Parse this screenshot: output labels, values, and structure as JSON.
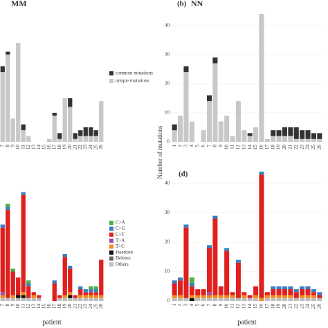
{
  "chart_data": [
    {
      "type": "bar",
      "stacked": true,
      "title": "MM",
      "categories": [
        "7",
        "8",
        "9",
        "10",
        "11",
        "12",
        "13",
        "14",
        "15",
        "16",
        "17",
        "18",
        "19",
        "20",
        "21",
        "22",
        "23",
        "24",
        "25",
        "26"
      ],
      "series": [
        {
          "name": "unique mutations",
          "color": "#c8c8c8",
          "values": [
            24,
            30,
            8,
            34,
            4,
            2,
            0,
            0,
            0,
            1,
            9,
            1,
            15,
            12,
            1,
            2,
            2,
            2,
            2,
            14
          ]
        },
        {
          "name": "common mutations",
          "color": "#333333",
          "values": [
            2,
            1,
            0,
            0,
            2,
            0,
            0,
            0,
            0,
            0,
            1,
            2,
            0,
            3,
            2,
            2,
            3,
            3,
            2,
            0
          ]
        }
      ],
      "ylim": [
        0,
        44
      ],
      "legend": "right"
    },
    {
      "type": "bar",
      "stacked": true,
      "panel": "(b)",
      "title": "NN",
      "ylabel": "Number of mutations",
      "categories": [
        "1",
        "2",
        "3",
        "4",
        "5",
        "6",
        "7",
        "8",
        "9",
        "10",
        "11",
        "12",
        "13",
        "14",
        "15",
        "16",
        "17",
        "18",
        "19",
        "20",
        "21",
        "22",
        "23",
        "24",
        "25",
        "26"
      ],
      "series": [
        {
          "name": "unique mutations",
          "color": "#c8c8c8",
          "values": [
            4,
            9,
            24,
            7,
            0,
            4,
            14,
            27,
            7,
            9,
            2,
            14,
            4,
            2,
            5,
            44,
            1,
            2,
            2,
            2,
            2,
            1,
            1,
            1,
            1,
            1
          ]
        },
        {
          "name": "common mutations",
          "color": "#333333",
          "values": [
            2,
            0,
            2,
            0,
            0,
            0,
            2,
            2,
            0,
            0,
            0,
            0,
            0,
            1,
            0,
            0,
            0,
            2,
            2,
            3,
            3,
            4,
            3,
            3,
            2,
            2
          ]
        }
      ],
      "ylim": [
        0,
        44
      ],
      "yticks": [
        0,
        10,
        20,
        30,
        40
      ]
    },
    {
      "type": "bar",
      "stacked": true,
      "xlabel": "patient",
      "categories": [
        "7",
        "8",
        "9",
        "10",
        "11",
        "12",
        "13",
        "14",
        "15",
        "16",
        "17",
        "18",
        "19",
        "20",
        "21",
        "22",
        "23",
        "24",
        "25",
        "26"
      ],
      "series": [
        {
          "name": "Others",
          "color": "#bdbdbd",
          "values": [
            1,
            1,
            1,
            1,
            1,
            1,
            1,
            1,
            0,
            0,
            0,
            1,
            1,
            1,
            1,
            1,
            1,
            1,
            1,
            1
          ]
        },
        {
          "name": "Deleten",
          "color": "#666666",
          "values": [
            0,
            0,
            0,
            0,
            0,
            0,
            0,
            0,
            0,
            0,
            0,
            0,
            0,
            0,
            0,
            0,
            0,
            0,
            0,
            0
          ]
        },
        {
          "name": "Insertion",
          "color": "#111111",
          "values": [
            0,
            0,
            0,
            1,
            1,
            0,
            0,
            0,
            0,
            0,
            0,
            0,
            0,
            1,
            0,
            0,
            0,
            0,
            0,
            0
          ]
        },
        {
          "name": "T>C",
          "color": "#f58a1f",
          "values": [
            1,
            0,
            1,
            0,
            1,
            0,
            1,
            0,
            0,
            0,
            0,
            0,
            1,
            1,
            0,
            1,
            1,
            1,
            1,
            1
          ]
        },
        {
          "name": "T>A",
          "color": "#9b4fa5",
          "values": [
            1,
            0,
            0,
            0,
            0,
            0,
            0,
            0,
            0,
            0,
            0,
            0,
            0,
            0,
            0,
            0,
            0,
            0,
            0,
            0
          ]
        },
        {
          "name": "C>T",
          "color": "#e0201f",
          "values": [
            22,
            30,
            8,
            6,
            33,
            4,
            1,
            1,
            0,
            0,
            6,
            1,
            13,
            8,
            1,
            2,
            1,
            1,
            1,
            12
          ]
        },
        {
          "name": "C>G",
          "color": "#3a7fc1",
          "values": [
            1,
            1,
            0,
            0,
            1,
            1,
            0,
            0,
            0,
            0,
            1,
            0,
            1,
            1,
            0,
            1,
            1,
            1,
            1,
            0
          ]
        },
        {
          "name": "C>A",
          "color": "#4dae4a",
          "values": [
            0,
            1,
            1,
            0,
            0,
            1,
            0,
            0,
            0,
            0,
            0,
            0,
            0,
            0,
            0,
            0,
            0,
            1,
            1,
            0
          ]
        }
      ],
      "ylim": [
        0,
        44
      ],
      "legend": "right"
    },
    {
      "type": "bar",
      "stacked": true,
      "panel": "(d)",
      "xlabel": "patient",
      "categories": [
        "1",
        "2",
        "3",
        "4",
        "5",
        "6",
        "7",
        "8",
        "9",
        "10",
        "11",
        "12",
        "13",
        "14",
        "15",
        "16",
        "17",
        "18",
        "19",
        "20",
        "21",
        "22",
        "23",
        "24",
        "25",
        "26"
      ],
      "series": [
        {
          "name": "Others",
          "color": "#bdbdbd",
          "values": [
            1,
            1,
            1,
            0,
            1,
            1,
            1,
            1,
            1,
            1,
            1,
            1,
            1,
            1,
            1,
            0,
            1,
            1,
            1,
            1,
            1,
            1,
            1,
            1,
            1,
            1
          ]
        },
        {
          "name": "Deleten",
          "color": "#666666",
          "values": [
            0,
            0,
            0,
            0,
            0,
            0,
            0,
            0,
            0,
            0,
            0,
            0,
            0,
            0,
            0,
            0,
            0,
            0,
            0,
            0,
            0,
            0,
            0,
            0,
            0,
            0
          ]
        },
        {
          "name": "Insertion",
          "color": "#111111",
          "values": [
            0,
            0,
            0,
            1,
            0,
            0,
            0,
            0,
            0,
            0,
            0,
            0,
            0,
            0,
            0,
            0,
            0,
            0,
            0,
            0,
            0,
            0,
            0,
            0,
            0,
            0
          ]
        },
        {
          "name": "T>C",
          "color": "#f58a1f",
          "values": [
            1,
            1,
            0,
            1,
            1,
            1,
            1,
            1,
            1,
            1,
            1,
            0,
            1,
            0,
            1,
            1,
            1,
            1,
            1,
            1,
            1,
            0,
            1,
            1,
            1,
            0
          ]
        },
        {
          "name": "T>A",
          "color": "#9b4fa5",
          "values": [
            0,
            0,
            0,
            0,
            0,
            0,
            1,
            0,
            0,
            0,
            0,
            0,
            0,
            0,
            0,
            0,
            0,
            0,
            0,
            0,
            0,
            0,
            0,
            0,
            0,
            0
          ]
        },
        {
          "name": "C>T",
          "color": "#e0201f",
          "values": [
            4,
            5,
            24,
            3,
            2,
            2,
            15,
            26,
            3,
            15,
            1,
            12,
            1,
            1,
            3,
            42,
            1,
            2,
            2,
            2,
            2,
            2,
            2,
            2,
            1,
            1
          ]
        },
        {
          "name": "C>G",
          "color": "#3a7fc1",
          "values": [
            1,
            1,
            1,
            1,
            0,
            0,
            1,
            1,
            0,
            1,
            0,
            1,
            0,
            0,
            0,
            1,
            0,
            1,
            1,
            1,
            1,
            1,
            1,
            1,
            1,
            1
          ]
        },
        {
          "name": "C>A",
          "color": "#4dae4a",
          "values": [
            0,
            0,
            0,
            2,
            0,
            0,
            0,
            0,
            0,
            0,
            0,
            0,
            0,
            0,
            0,
            0,
            0,
            0,
            0,
            0,
            0,
            0,
            0,
            0,
            0,
            0
          ]
        }
      ],
      "ylim": [
        0,
        44
      ],
      "yticks": [
        0,
        10,
        20,
        30,
        40
      ]
    }
  ]
}
